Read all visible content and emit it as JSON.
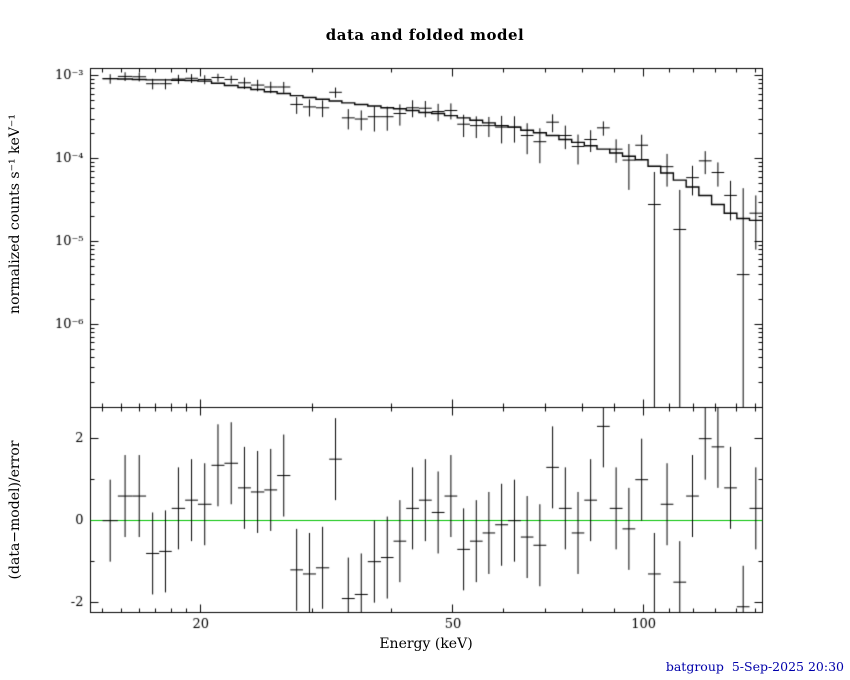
{
  "footer_stamp": "batgroup  5-Sep-2025 20:30",
  "chart_data": {
    "type": "line",
    "title": "data and folded model",
    "xlabel": "Energy (keV)",
    "ylabel_top": "normalized counts s⁻¹ keV⁻¹",
    "ylabel_bottom": "(data−model)/error",
    "x_scale": "log",
    "x_range": [
      13.4,
      154
    ],
    "x_major_ticks": [
      {
        "value": 20,
        "label": "20"
      },
      {
        "value": 50,
        "label": "50"
      },
      {
        "value": 100,
        "label": "100"
      }
    ],
    "x_minor_ticks": [
      14,
      15,
      16,
      17,
      18,
      19,
      30,
      40,
      60,
      70,
      80,
      90,
      110,
      120,
      130,
      140,
      150
    ],
    "top_y_scale": "log",
    "top_y_range": [
      1e-07,
      0.00122
    ],
    "top_y_ticks": [
      {
        "value": 0.001,
        "label": "10⁻³"
      },
      {
        "value": 0.0001,
        "label": "10⁻⁴"
      },
      {
        "value": 1e-05,
        "label": "10⁻⁵"
      },
      {
        "value": 1e-06,
        "label": "10⁻⁶"
      }
    ],
    "bottom_y_range": [
      -2.24,
      2.76
    ],
    "bottom_y_ticks": [
      {
        "value": 2,
        "label": "2"
      },
      {
        "value": 0,
        "label": "0"
      },
      {
        "value": -2,
        "label": "-2"
      }
    ],
    "bottom_y_minor_ticks": [
      -1,
      1
    ],
    "zero_line_color": "#00c000",
    "bin_edges": [
      14.0,
      14.8,
      15.6,
      16.4,
      17.2,
      18.0,
      18.9,
      19.8,
      20.8,
      21.8,
      22.9,
      24.0,
      25.2,
      26.4,
      27.7,
      29.0,
      30.4,
      31.9,
      33.4,
      35.0,
      36.7,
      38.5,
      40.3,
      42.2,
      44.2,
      46.3,
      48.5,
      50.8,
      53.2,
      55.7,
      58.3,
      61.1,
      64.0,
      67.0,
      70.2,
      73.5,
      77.0,
      80.6,
      84.4,
      88.4,
      92.6,
      97.0,
      101.6,
      106.4,
      111.4,
      116.7,
      122.2,
      128.0,
      134.0,
      140.3,
      146.9,
      153.8
    ],
    "model": [
      0.00092,
      0.00091,
      0.0009,
      0.00089,
      0.00089,
      0.00088,
      0.000875,
      0.00086,
      0.00081,
      0.00076,
      0.00072,
      0.00068,
      0.00064,
      0.00061,
      0.000575,
      0.000545,
      0.00052,
      0.000495,
      0.00047,
      0.00045,
      0.00043,
      0.00041,
      0.0004,
      0.00038,
      0.00036,
      0.00035,
      0.00033,
      0.00031,
      0.00029,
      0.00027,
      0.00025,
      0.00024,
      0.00022,
      0.000205,
      0.00019,
      0.00017,
      0.000157,
      0.000143,
      0.00013,
      0.000117,
      0.000107,
      9.7e-05,
      8.1e-05,
      6.7e-05,
      5.5e-05,
      4.55e-05,
      3.6e-05,
      2.8e-05,
      2.2e-05,
      1.9e-05,
      1.8e-05
    ],
    "data": [
      0.00092,
      0.00098,
      0.00097,
      0.0008,
      0.0008,
      0.00091,
      0.00093,
      0.0009,
      0.00095,
      0.0009,
      0.00082,
      0.00077,
      0.00073,
      0.00073,
      0.00045,
      0.00042,
      0.00041,
      0.00063,
      0.00031,
      0.0003,
      0.00032,
      0.00032,
      0.00035,
      0.00041,
      0.000405,
      0.00037,
      0.00038,
      0.00026,
      0.00025,
      0.00025,
      0.00024,
      0.00024,
      0.00019,
      0.00016,
      0.000275,
      0.00019,
      0.00014,
      0.00017,
      0.000235,
      0.00013,
      9.6e-05,
      0.000145,
      2.8e-05,
      8e-05,
      1.4e-05,
      5.9e-05,
      9.4e-05,
      6.8e-05,
      3.6e-05,
      4e-06,
      2.2e-05
    ],
    "data_err": [
      0.00012,
      0.000118,
      0.000117,
      0.000116,
      0.000116,
      0.000114,
      0.000114,
      0.000112,
      0.000105,
      9.9e-05,
      0.00013,
      0.000122,
      0.000115,
      0.00011,
      0.000104,
      9.8e-05,
      9.4e-05,
      8.9e-05,
      8.5e-05,
      8.1e-05,
      0.000108,
      0.000103,
      0.0001,
      9.5e-05,
      9e-05,
      8.8e-05,
      8.3e-05,
      7.8e-05,
      7.3e-05,
      6.8e-05,
      8.75e-05,
      8.4e-05,
      7.7e-05,
      7.2e-05,
      6.7e-05,
      6e-05,
      5.5e-05,
      5e-05,
      4.6e-05,
      4.1e-05,
      5.4e-05,
      4.9e-05,
      4.1e-05,
      3.4e-05,
      2.8e-05,
      2.3e-05,
      2.9e-05,
      2.2e-05,
      1.8e-05,
      4e-05,
      1.4e-05
    ],
    "residuals": [
      0.0,
      0.6,
      0.6,
      -0.8,
      -0.75,
      0.3,
      0.5,
      0.4,
      1.35,
      1.4,
      0.8,
      0.7,
      0.75,
      1.1,
      -1.2,
      -1.3,
      -1.15,
      1.5,
      -1.9,
      -1.8,
      -1.0,
      -0.9,
      -0.5,
      0.3,
      0.5,
      0.2,
      0.6,
      -0.7,
      -0.5,
      -0.3,
      -0.1,
      0.0,
      -0.4,
      -0.6,
      1.3,
      0.3,
      -0.3,
      0.5,
      2.3,
      0.3,
      -0.2,
      1.0,
      -1.3,
      0.4,
      -1.5,
      0.6,
      2.0,
      1.8,
      0.8,
      -2.1,
      0.3
    ],
    "residual_err": 1
  }
}
